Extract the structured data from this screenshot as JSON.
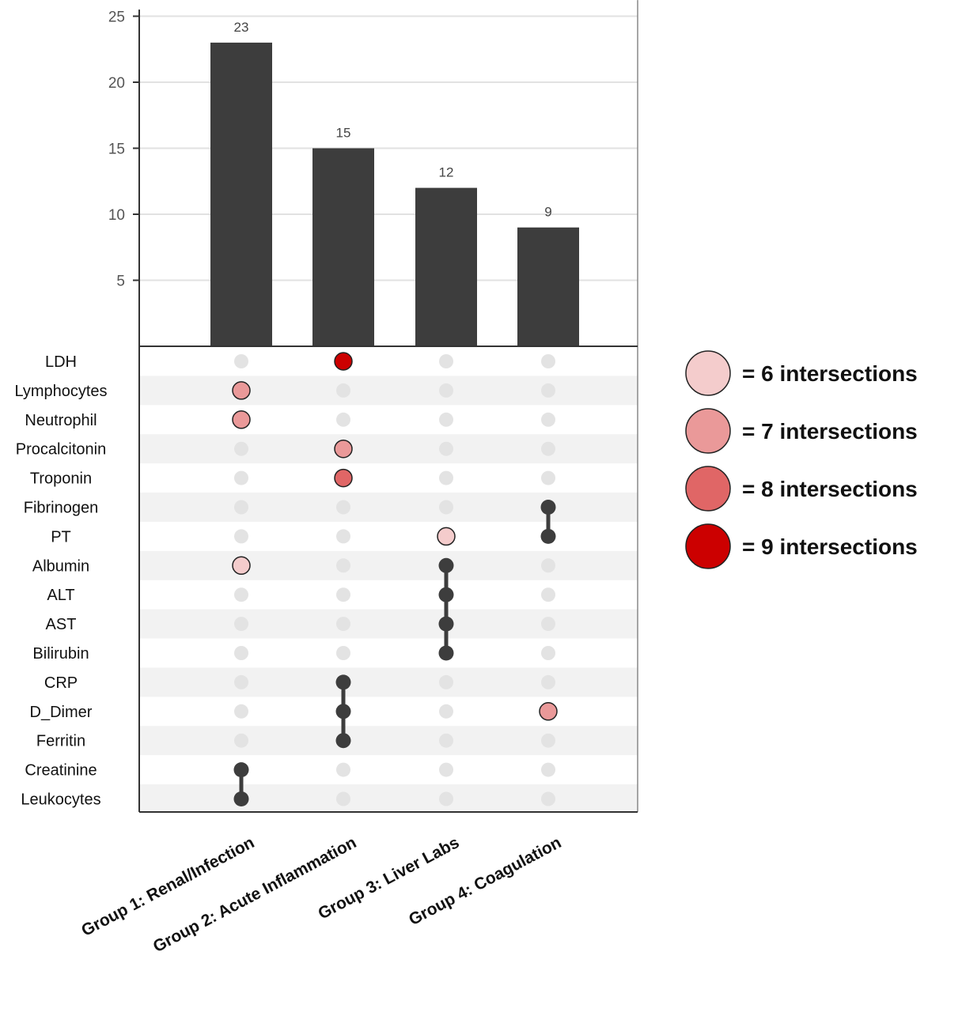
{
  "chart_data": {
    "type": "bar",
    "subtype": "upset",
    "categories": [
      "Group 1: Renal/Infection",
      "Group 2: Acute Inflammation",
      "Group 3: Liver Labs",
      "Group 4: Coagulation"
    ],
    "values": [
      23,
      15,
      12,
      9
    ],
    "ylim": [
      0,
      25.5
    ],
    "yticks": [
      5,
      10,
      15,
      20,
      25
    ],
    "grid": true,
    "bar_color": "#3d3d3d",
    "sets": [
      "LDH",
      "Lymphocytes",
      "Neutrophil",
      "Procalcitonin",
      "Troponin",
      "Fibrinogen",
      "PT",
      "Albumin",
      "ALT",
      "AST",
      "Bilirubin",
      "CRP",
      "D_Dimer",
      "Ferritin",
      "Creatinine",
      "Leukocytes"
    ],
    "matrix": [
      {
        "group": 0,
        "set": "Lymphocytes",
        "level": 7
      },
      {
        "group": 0,
        "set": "Neutrophil",
        "level": 7
      },
      {
        "group": 0,
        "set": "Albumin",
        "level": 6
      },
      {
        "group": 0,
        "set": "Creatinine",
        "level": "member"
      },
      {
        "group": 0,
        "set": "Leukocytes",
        "level": "member"
      },
      {
        "group": 1,
        "set": "LDH",
        "level": 9
      },
      {
        "group": 1,
        "set": "Procalcitonin",
        "level": 7
      },
      {
        "group": 1,
        "set": "Troponin",
        "level": 8
      },
      {
        "group": 1,
        "set": "CRP",
        "level": "member"
      },
      {
        "group": 1,
        "set": "D_Dimer",
        "level": "member"
      },
      {
        "group": 1,
        "set": "Ferritin",
        "level": "member"
      },
      {
        "group": 2,
        "set": "PT",
        "level": 6
      },
      {
        "group": 2,
        "set": "Albumin",
        "level": "member"
      },
      {
        "group": 2,
        "set": "ALT",
        "level": "member"
      },
      {
        "group": 2,
        "set": "AST",
        "level": "member"
      },
      {
        "group": 2,
        "set": "Bilirubin",
        "level": "member"
      },
      {
        "group": 3,
        "set": "Fibrinogen",
        "level": "member"
      },
      {
        "group": 3,
        "set": "PT",
        "level": "member"
      },
      {
        "group": 3,
        "set": "D_Dimer",
        "level": 7
      }
    ],
    "connectors": [
      {
        "group": 0,
        "from": "Creatinine",
        "to": "Leukocytes"
      },
      {
        "group": 1,
        "from": "CRP",
        "to": "Ferritin"
      },
      {
        "group": 2,
        "from": "Albumin",
        "to": "Bilirubin"
      },
      {
        "group": 3,
        "from": "Fibrinogen",
        "to": "PT"
      }
    ],
    "legend": {
      "placement": "right",
      "entries": [
        {
          "level": 6,
          "label": "= 6 intersections",
          "color": "#f4cccc"
        },
        {
          "level": 7,
          "label": "= 7 intersections",
          "color": "#ea9999"
        },
        {
          "level": 8,
          "label": "= 8 intersections",
          "color": "#e06666"
        },
        {
          "level": 9,
          "label": "= 9 intersections",
          "color": "#cc0000"
        }
      ]
    },
    "member_color": "#3d3d3d",
    "empty_dot_color": "#e3e3e3",
    "stripe_color": "#f2f2f2"
  }
}
